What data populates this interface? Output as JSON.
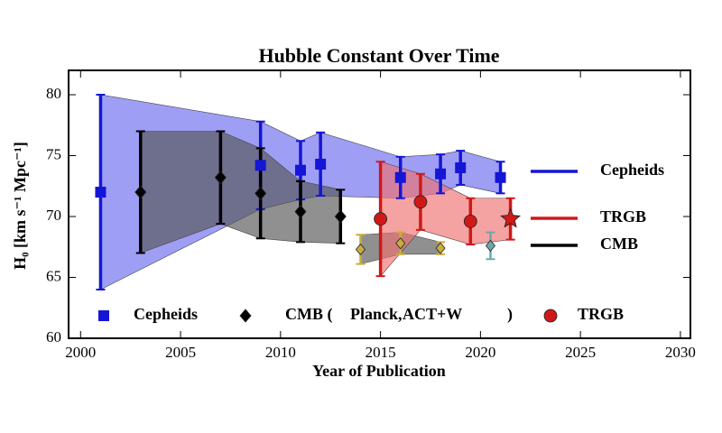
{
  "chart_data": {
    "type": "errorbar",
    "title": "Hubble Constant Over Time",
    "xlabel": "Year of Publication",
    "ylabel": "H₀ [km s⁻¹ Mpc⁻¹]",
    "xlim": [
      1999.4,
      2030.5
    ],
    "ylim": [
      60,
      82
    ],
    "xticks": [
      2000,
      2005,
      2010,
      2015,
      2020,
      2025,
      2030
    ],
    "yticks": [
      60,
      65,
      70,
      75,
      80
    ],
    "series": [
      {
        "name": "Cepheids",
        "color": "#1515d6",
        "marker": "square",
        "band_color": "#6a6af0",
        "x": [
          2001,
          2009,
          2011,
          2012,
          2016,
          2018,
          2019,
          2021
        ],
        "values": [
          72,
          74.2,
          73.8,
          74.3,
          73.2,
          73.5,
          74.0,
          73.2
        ],
        "errors": [
          8,
          3.6,
          2.4,
          2.6,
          1.7,
          1.6,
          1.4,
          1.3
        ]
      },
      {
        "name": "CMB",
        "color": "#000000",
        "marker": "diamond",
        "band_color": "#555555",
        "x": [
          2003,
          2007,
          2009,
          2011,
          2013
        ],
        "values": [
          72,
          73.2,
          71.9,
          70.4,
          70.0
        ],
        "errors": [
          5,
          3.8,
          3.7,
          2.5,
          2.2
        ]
      },
      {
        "name": "Planck",
        "color": "#c9ac3c",
        "marker": "diamond",
        "band_color": "#555555",
        "x": [
          2014,
          2016,
          2018
        ],
        "values": [
          67.3,
          67.8,
          67.4
        ],
        "errors": [
          1.2,
          0.9,
          0.5
        ]
      },
      {
        "name": "ACT+W",
        "color": "#6aaaa8",
        "marker": "diamond",
        "x": [
          2020.5
        ],
        "values": [
          67.6
        ],
        "errors": [
          1.1
        ]
      },
      {
        "name": "TRGB",
        "color": "#d01818",
        "marker": [
          "circle",
          "circle",
          "circle",
          "star"
        ],
        "band_color": "#f07070",
        "x": [
          2015,
          2017,
          2019.5,
          2021.5
        ],
        "values": [
          69.8,
          71.2,
          69.6,
          69.8
        ],
        "errors": [
          4.7,
          2.3,
          1.9,
          1.7
        ]
      }
    ],
    "marker_legend": [
      "Cepheids",
      "CMB (",
      "Planck,",
      "ACT+W",
      ")",
      "TRGB"
    ]
  }
}
